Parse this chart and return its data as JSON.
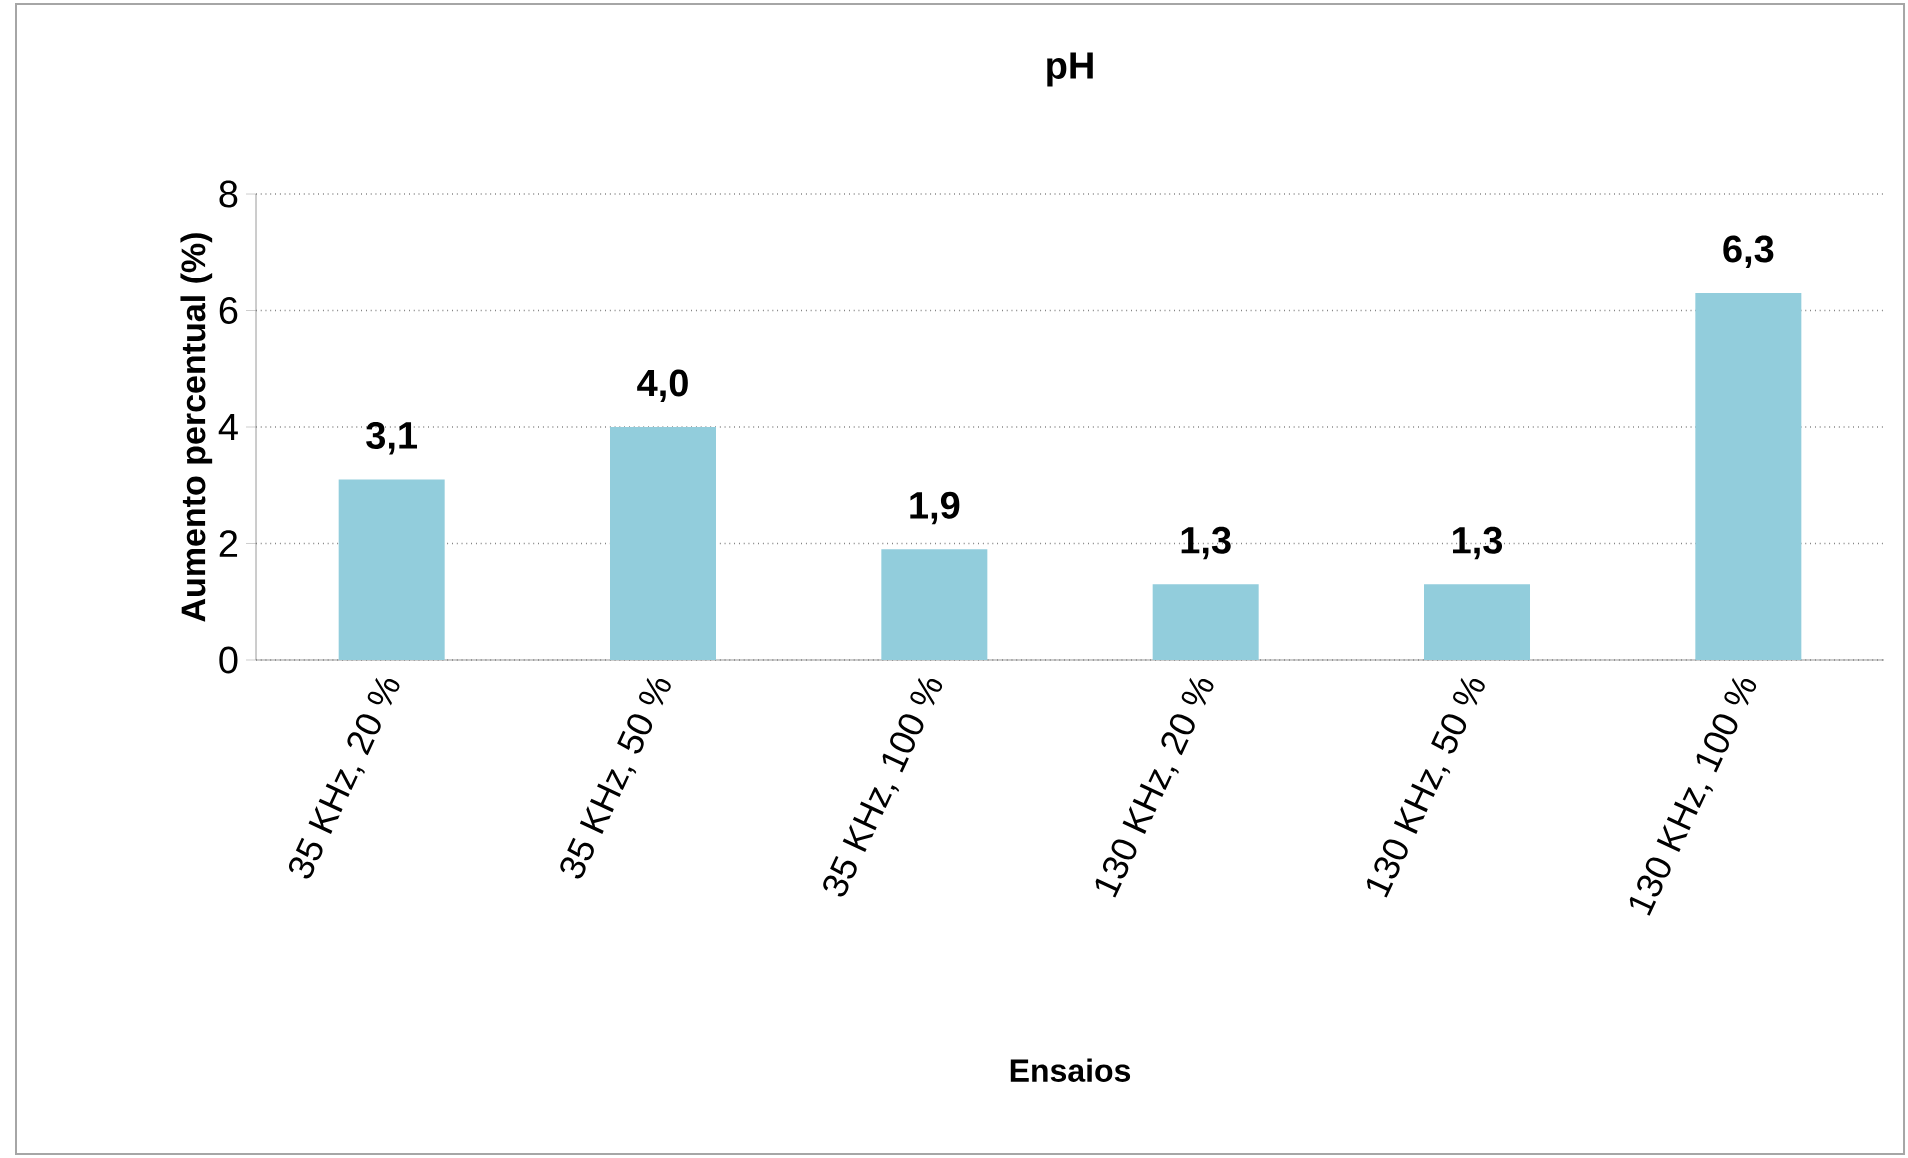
{
  "chart_data": {
    "type": "bar",
    "title": "pH",
    "xlabel": "Ensaios",
    "ylabel": "Aumento percentual (%)",
    "categories": [
      "35 KHz, 20 %",
      "35 KHz, 50 %",
      "35 KHz, 100 %",
      "130 KHz, 20 %",
      "130 KHz, 50 %",
      "130 KHz, 100 %"
    ],
    "values": [
      3.1,
      4.0,
      1.9,
      1.3,
      1.3,
      6.3
    ],
    "value_labels": [
      "3,1",
      "4,0",
      "1,9",
      "1,3",
      "1,3",
      "6,3"
    ],
    "color": "#92cddc",
    "ylim": [
      0,
      8
    ],
    "yticks": [
      0,
      2,
      4,
      6,
      8
    ],
    "grid": "y"
  }
}
